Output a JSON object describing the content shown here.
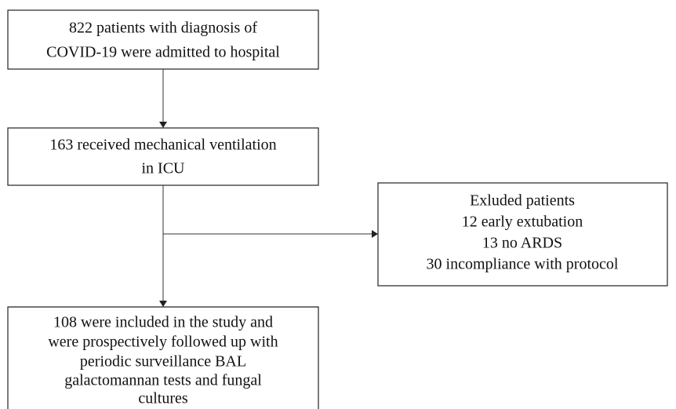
{
  "nodes": [
    {
      "lines": [
        "822 patients with diagnosis of",
        "COVID-19 were admitted to hospital"
      ]
    },
    {
      "lines": [
        "163 received mechanical ventilation",
        "in ICU"
      ]
    },
    {
      "lines": [
        "Exluded patients",
        "12 early extubation",
        "13 no ARDS",
        "30 incompliance with protocol"
      ]
    },
    {
      "lines": [
        "108 were included in the study and",
        "were prospectively followed up with",
        "periodic surveillance BAL",
        "galactomannan tests and fungal",
        "cultures"
      ]
    }
  ]
}
